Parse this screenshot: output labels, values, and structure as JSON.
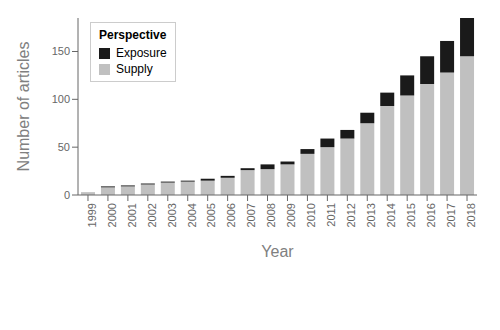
{
  "chart_data": {
    "type": "bar",
    "stacked": true,
    "x_label": "Year",
    "y_label": "Number of articles",
    "legend_title": "Perspective",
    "legend": "upper left",
    "grid": false,
    "categories": [
      "1999",
      "2000",
      "2001",
      "2002",
      "2003",
      "2004",
      "2005",
      "2006",
      "2007",
      "2008",
      "2009",
      "2010",
      "2011",
      "2012",
      "2013",
      "2014",
      "2015",
      "2016",
      "2017",
      "2018"
    ],
    "series": [
      {
        "name": "Supply",
        "color": "#c0c0c0",
        "values": [
          3,
          8,
          9,
          11,
          13,
          14,
          15,
          18,
          26,
          27,
          32,
          43,
          50,
          59,
          75,
          93,
          104,
          116,
          128,
          145
        ]
      },
      {
        "name": "Exposure",
        "color": "#1a1a1a",
        "values": [
          0,
          1,
          1,
          1,
          1,
          1,
          2,
          2,
          2,
          5,
          3,
          5,
          9,
          9,
          11,
          14,
          21,
          29,
          33,
          40
        ]
      }
    ],
    "ylim": [
      0,
      185
    ],
    "yticks": [
      0,
      50,
      100,
      150
    ]
  }
}
